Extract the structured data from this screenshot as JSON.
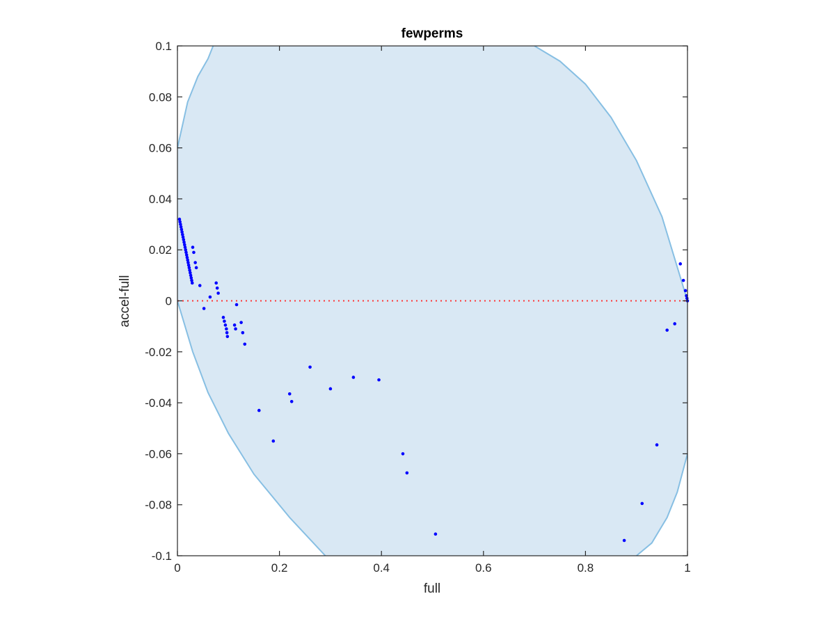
{
  "chart_data": {
    "type": "scatter",
    "title": "fewperms",
    "xlabel": "full",
    "ylabel": "accel-full",
    "xlim": [
      0,
      1
    ],
    "ylim": [
      -0.1,
      0.1
    ],
    "xticks": [
      "0",
      "0.2",
      "0.4",
      "0.6",
      "0.8",
      "1"
    ],
    "yticks": [
      "-0.1",
      "-0.08",
      "-0.06",
      "-0.04",
      "-0.02",
      "0",
      "0.02",
      "0.04",
      "0.06",
      "0.08",
      "0.1"
    ],
    "grid": false,
    "colors": {
      "points": "#0000ff",
      "region_fill": "#d9e8f4",
      "region_edge": "#87bfe3",
      "zero_line": "#ff3333",
      "axes": "#262626"
    },
    "zero_line": {
      "y": 0,
      "style": "dotted"
    },
    "region": {
      "left_upper": [
        [
          0,
          0.06
        ],
        [
          0.02,
          0.078
        ],
        [
          0.04,
          0.088
        ],
        [
          0.06,
          0.095
        ],
        [
          0.07,
          0.1
        ]
      ],
      "top_right": [
        [
          0.7,
          0.1
        ],
        [
          0.75,
          0.094
        ],
        [
          0.8,
          0.085
        ],
        [
          0.85,
          0.072
        ],
        [
          0.9,
          0.055
        ],
        [
          0.95,
          0.033
        ],
        [
          1,
          0.0
        ]
      ],
      "right_lower": [
        [
          1,
          -0.06
        ],
        [
          0.98,
          -0.075
        ],
        [
          0.96,
          -0.085
        ],
        [
          0.93,
          -0.095
        ],
        [
          0.9,
          -0.1
        ]
      ],
      "bottom_left": [
        [
          0.29,
          -0.1
        ],
        [
          0.22,
          -0.085
        ],
        [
          0.15,
          -0.068
        ],
        [
          0.1,
          -0.052
        ],
        [
          0.06,
          -0.036
        ],
        [
          0.03,
          -0.02
        ],
        [
          0,
          0.0
        ]
      ]
    },
    "series": [
      {
        "values": [
          [
            0.004,
            0.032
          ],
          [
            0.005,
            0.031
          ],
          [
            0.006,
            0.03
          ],
          [
            0.007,
            0.029
          ],
          [
            0.008,
            0.028
          ],
          [
            0.009,
            0.027
          ],
          [
            0.01,
            0.026
          ],
          [
            0.011,
            0.025
          ],
          [
            0.012,
            0.024
          ],
          [
            0.013,
            0.023
          ],
          [
            0.014,
            0.022
          ],
          [
            0.015,
            0.021
          ],
          [
            0.016,
            0.02
          ],
          [
            0.017,
            0.019
          ],
          [
            0.018,
            0.018
          ],
          [
            0.019,
            0.017
          ],
          [
            0.02,
            0.016
          ],
          [
            0.021,
            0.015
          ],
          [
            0.022,
            0.014
          ],
          [
            0.023,
            0.013
          ],
          [
            0.024,
            0.012
          ],
          [
            0.025,
            0.011
          ],
          [
            0.026,
            0.01
          ],
          [
            0.027,
            0.009
          ],
          [
            0.028,
            0.008
          ],
          [
            0.029,
            0.007
          ],
          [
            0.03,
            0.021
          ],
          [
            0.032,
            0.019
          ],
          [
            0.035,
            0.015
          ],
          [
            0.037,
            0.013
          ],
          [
            0.044,
            0.006
          ],
          [
            0.052,
            -0.003
          ],
          [
            0.064,
            0.0015
          ],
          [
            0.076,
            0.007
          ],
          [
            0.078,
            0.005
          ],
          [
            0.08,
            0.003
          ],
          [
            0.09,
            -0.0065
          ],
          [
            0.092,
            -0.008
          ],
          [
            0.094,
            -0.0095
          ],
          [
            0.096,
            -0.011
          ],
          [
            0.097,
            -0.0125
          ],
          [
            0.098,
            -0.014
          ],
          [
            0.112,
            -0.0095
          ],
          [
            0.114,
            -0.011
          ],
          [
            0.116,
            -0.0015
          ],
          [
            0.125,
            -0.0085
          ],
          [
            0.128,
            -0.0125
          ],
          [
            0.132,
            -0.017
          ],
          [
            0.16,
            -0.043
          ],
          [
            0.188,
            -0.055
          ],
          [
            0.22,
            -0.0365
          ],
          [
            0.224,
            -0.0395
          ],
          [
            0.26,
            -0.026
          ],
          [
            0.3,
            -0.0345
          ],
          [
            0.345,
            -0.03
          ],
          [
            0.395,
            -0.031
          ],
          [
            0.442,
            -0.06
          ],
          [
            0.45,
            -0.0675
          ],
          [
            0.506,
            -0.0915
          ],
          [
            0.876,
            -0.094
          ],
          [
            0.911,
            -0.0795
          ],
          [
            0.94,
            -0.0565
          ],
          [
            0.96,
            -0.0115
          ],
          [
            0.975,
            -0.009
          ],
          [
            0.986,
            0.0145
          ],
          [
            0.992,
            0.008
          ],
          [
            0.996,
            0.004
          ],
          [
            0.998,
            0.002
          ],
          [
            0.999,
            0.001
          ],
          [
            1.0,
            0.0
          ]
        ]
      }
    ]
  }
}
